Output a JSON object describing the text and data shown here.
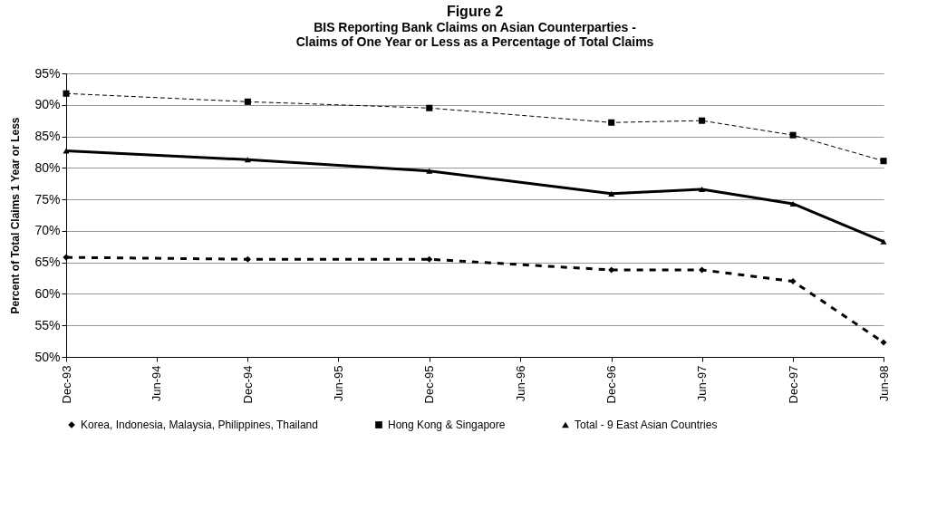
{
  "chart_data": {
    "type": "line",
    "title": "Figure 2",
    "subtitle": "BIS Reporting Bank Claims on Asian Counterparties -\nClaims of One Year or Less as a Percentage of Total Claims",
    "ylabel": "Percent of Total Claims 1 Year or Less",
    "x": [
      "1993-12",
      "1994-12",
      "1995-12",
      "1996-12",
      "1997-06",
      "1997-12",
      "1998-06"
    ],
    "xlim": [
      "1993-12",
      "1998-06"
    ],
    "xticks": [
      {
        "value": "1993-12",
        "label": "Dec-93"
      },
      {
        "value": "1994-06",
        "label": "Jun-94"
      },
      {
        "value": "1994-12",
        "label": "Dec-94"
      },
      {
        "value": "1995-06",
        "label": "Jun-95"
      },
      {
        "value": "1995-12",
        "label": "Dec-95"
      },
      {
        "value": "1996-06",
        "label": "Jun-96"
      },
      {
        "value": "1996-12",
        "label": "Dec-96"
      },
      {
        "value": "1997-06",
        "label": "Jun-97"
      },
      {
        "value": "1997-12",
        "label": "Dec-97"
      },
      {
        "value": "1998-06",
        "label": "Jun-98"
      }
    ],
    "ylim": [
      50,
      95
    ],
    "yticks": [
      {
        "value": 50,
        "label": "50%"
      },
      {
        "value": 55,
        "label": "55%"
      },
      {
        "value": 60,
        "label": "60%"
      },
      {
        "value": 65,
        "label": "65%"
      },
      {
        "value": 70,
        "label": "70%"
      },
      {
        "value": 75,
        "label": "75%"
      },
      {
        "value": 80,
        "label": "80%"
      },
      {
        "value": 85,
        "label": "85%"
      },
      {
        "value": 90,
        "label": "90%"
      },
      {
        "value": 95,
        "label": "95%"
      }
    ],
    "grid": "y",
    "legend": "bottom",
    "series": [
      {
        "name": "Korea, Indonesia, Malaysia, Philippines, Thailand",
        "color": "#000000",
        "marker": "diamond",
        "line_style": "dashed",
        "values": [
          65.8,
          65.5,
          65.5,
          63.8,
          63.8,
          62.0,
          52.3
        ]
      },
      {
        "name": "Hong Kong & Singapore",
        "color": "#000000",
        "marker": "square",
        "line_style": "dashed",
        "values": [
          91.8,
          90.5,
          89.5,
          87.2,
          87.5,
          85.2,
          81.1
        ]
      },
      {
        "name": "Total - 9 East Asian Countries",
        "color": "#000000",
        "marker": "triangle",
        "line_style": "solid",
        "values": [
          82.7,
          81.3,
          79.5,
          75.9,
          76.6,
          74.3,
          68.3
        ]
      }
    ]
  }
}
